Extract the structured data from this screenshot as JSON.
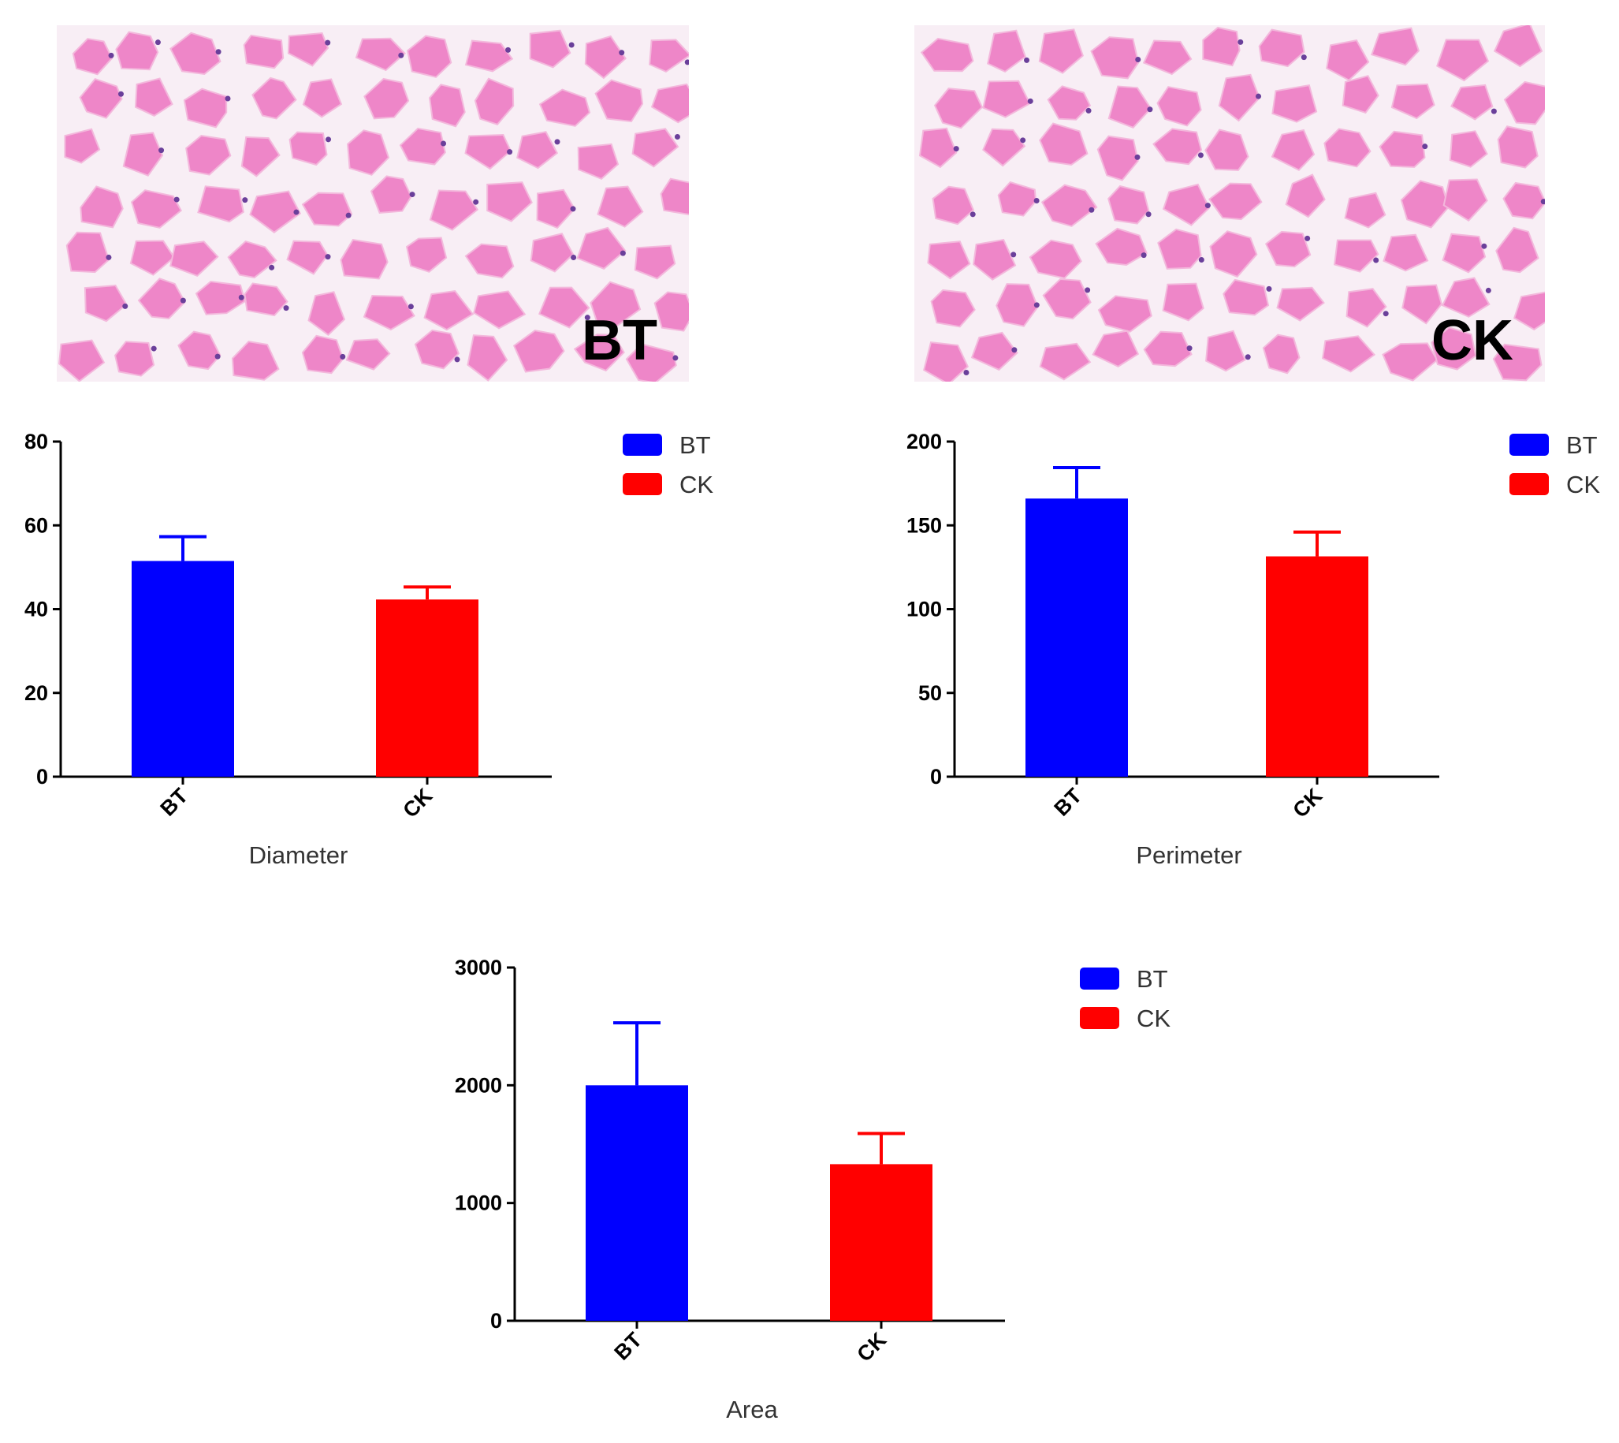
{
  "micrographs": [
    {
      "label": "BT",
      "tissue_color": "#ee86c8",
      "background_color": "#f8eef5",
      "nucleus_color": "#6a3f9a"
    },
    {
      "label": "CK",
      "tissue_color": "#ee86c8",
      "background_color": "#f8eef5",
      "nucleus_color": "#6a3f9a"
    }
  ],
  "colors": {
    "BT": "#0000ff",
    "CK": "#ff0000"
  },
  "chart_data": [
    {
      "type": "bar",
      "xlabel": "Diameter",
      "ylabel": "",
      "categories": [
        "BT",
        "CK"
      ],
      "values": [
        51.5,
        42.3
      ],
      "errors": [
        5.8,
        3.0
      ],
      "ylim": [
        0,
        80
      ],
      "yticks": [
        0,
        20,
        40,
        60,
        80
      ],
      "legend": {
        "position": "top-right",
        "entries": [
          "BT",
          "CK"
        ]
      }
    },
    {
      "type": "bar",
      "xlabel": "Perimeter",
      "ylabel": "",
      "categories": [
        "BT",
        "CK"
      ],
      "values": [
        166,
        131.5
      ],
      "errors": [
        18.5,
        14.5
      ],
      "ylim": [
        0,
        200
      ],
      "yticks": [
        0,
        50,
        100,
        150,
        200
      ],
      "legend": {
        "position": "top-right",
        "entries": [
          "BT",
          "CK"
        ]
      }
    },
    {
      "type": "bar",
      "xlabel": "Area",
      "ylabel": "",
      "categories": [
        "BT",
        "CK"
      ],
      "values": [
        2000,
        1330
      ],
      "errors": [
        530,
        260
      ],
      "ylim": [
        0,
        3000
      ],
      "yticks": [
        0,
        1000,
        2000,
        3000
      ],
      "legend": {
        "position": "top-right",
        "entries": [
          "BT",
          "CK"
        ]
      }
    }
  ]
}
